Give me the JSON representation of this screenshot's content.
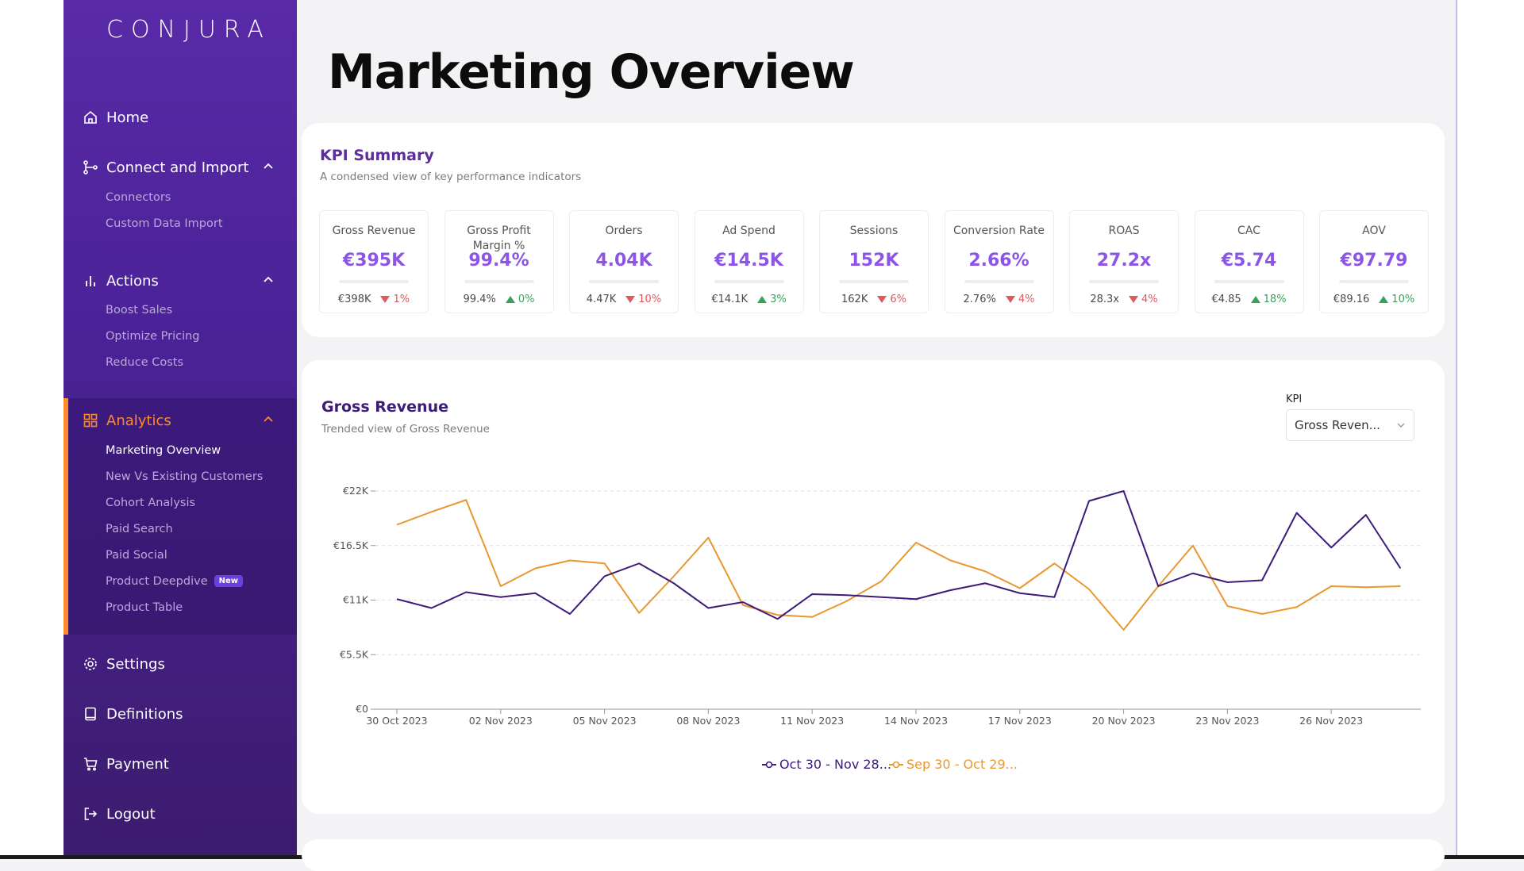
{
  "sidebar": {
    "logo": "CONJURA",
    "items": [
      {
        "label": "Home",
        "icon": "home-icon"
      },
      {
        "label": "Connect and Import",
        "icon": "connect-icon",
        "sub": [
          "Connectors",
          "Custom Data Import"
        ]
      },
      {
        "label": "Actions",
        "icon": "bar-chart-icon",
        "sub": [
          "Boost Sales",
          "Optimize Pricing",
          "Reduce Costs"
        ]
      },
      {
        "label": "Analytics",
        "icon": "grid-icon",
        "sub": [
          "Marketing Overview",
          "New Vs Existing Customers",
          "Cohort Analysis",
          "Paid Search",
          "Paid Social",
          "Product Deepdive",
          "Product Table"
        ],
        "active_sub": "Marketing Overview",
        "badge": "New"
      },
      {
        "label": "Settings",
        "icon": "gear-icon"
      },
      {
        "label": "Definitions",
        "icon": "book-icon"
      },
      {
        "label": "Payment",
        "icon": "cart-icon"
      },
      {
        "label": "Logout",
        "icon": "logout-icon"
      }
    ]
  },
  "page": {
    "title": "Marketing Overview"
  },
  "kpi_summary": {
    "title": "KPI Summary",
    "subtitle": "A condensed view of key performance indicators",
    "tiles": [
      {
        "label": "Gross Revenue",
        "value": "€395K",
        "prev": "€398K",
        "change": "1%",
        "dir": "down"
      },
      {
        "label": "Gross Profit Margin %",
        "value": "99.4%",
        "prev": "99.4%",
        "change": "0%",
        "dir": "up"
      },
      {
        "label": "Orders",
        "value": "4.04K",
        "prev": "4.47K",
        "change": "10%",
        "dir": "down"
      },
      {
        "label": "Ad Spend",
        "value": "€14.5K",
        "prev": "€14.1K",
        "change": "3%",
        "dir": "up"
      },
      {
        "label": "Sessions",
        "value": "152K",
        "prev": "162K",
        "change": "6%",
        "dir": "down"
      },
      {
        "label": "Conversion Rate",
        "value": "2.66%",
        "prev": "2.76%",
        "change": "4%",
        "dir": "down"
      },
      {
        "label": "ROAS",
        "value": "27.2x",
        "prev": "28.3x",
        "change": "4%",
        "dir": "down"
      },
      {
        "label": "CAC",
        "value": "€5.74",
        "prev": "€4.85",
        "change": "18%",
        "dir": "up"
      },
      {
        "label": "AOV",
        "value": "€97.79",
        "prev": "€89.16",
        "change": "10%",
        "dir": "up"
      }
    ]
  },
  "trend": {
    "title": "Gross Revenue",
    "subtitle": "Trended view of Gross Revenue",
    "kpi_label": "KPI",
    "kpi_selected": "Gross Reven..."
  },
  "colors": {
    "current": "#3d1b7a",
    "previous": "#e8982f"
  },
  "chart_data": {
    "type": "line",
    "x_ticks": [
      "30 Oct 2023",
      "02 Nov 2023",
      "05 Nov 2023",
      "08 Nov 2023",
      "11 Nov 2023",
      "14 Nov 2023",
      "17 Nov 2023",
      "20 Nov 2023",
      "23 Nov 2023",
      "26 Nov 2023"
    ],
    "y_ticks": [
      "€0",
      "€5.5K",
      "€11K",
      "€16.5K",
      "€22K"
    ],
    "ylim": [
      0,
      22000
    ],
    "grid": true,
    "legend": "bottom-center",
    "series": [
      {
        "name": "Oct 30 - Nov 28...",
        "values": [
          11100,
          10200,
          11800,
          11300,
          11700,
          9600,
          13400,
          14700,
          12700,
          10200,
          10800,
          9100,
          11600,
          11500,
          11300,
          11100,
          12000,
          12700,
          11700,
          11300,
          21000,
          22000,
          12400,
          13700,
          12800,
          13000,
          19800,
          16300,
          19600,
          14200
        ]
      },
      {
        "name": "Sep 30 - Oct 29...",
        "values": [
          18600,
          19900,
          21100,
          12400,
          14200,
          15000,
          14700,
          9700,
          13400,
          17300,
          10500,
          9500,
          9300,
          10900,
          12900,
          16800,
          15000,
          13900,
          12200,
          14700,
          12100,
          8000,
          12400,
          16500,
          10400,
          9600,
          10300,
          12400,
          12300,
          12400
        ]
      }
    ]
  }
}
